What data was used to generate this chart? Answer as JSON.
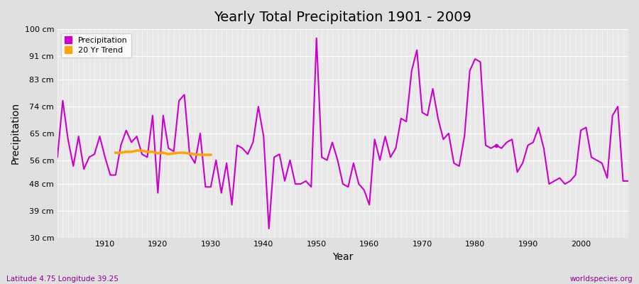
{
  "title": "Yearly Total Precipitation 1901 - 2009",
  "xlabel": "Year",
  "ylabel": "Precipitation",
  "subtitle_left": "Latitude 4.75 Longitude 39.25",
  "subtitle_right": "worldspecies.org",
  "line_color": "#CC00CC",
  "trend_color": "#FFA500",
  "fig_bg_color": "#E0E0E0",
  "plot_bg_color": "#E8E8E8",
  "ylim": [
    30,
    100
  ],
  "yticks": [
    30,
    39,
    48,
    56,
    65,
    74,
    83,
    91,
    100
  ],
  "ytick_labels": [
    "30 cm",
    "39 cm",
    "48 cm",
    "56 cm",
    "65 cm",
    "74 cm",
    "83 cm",
    "91 cm",
    "100 cm"
  ],
  "xticks": [
    1910,
    1920,
    1930,
    1940,
    1950,
    1960,
    1970,
    1980,
    1990,
    2000
  ],
  "years": [
    1901,
    1902,
    1903,
    1904,
    1905,
    1906,
    1907,
    1908,
    1909,
    1910,
    1911,
    1912,
    1913,
    1914,
    1915,
    1916,
    1917,
    1918,
    1919,
    1920,
    1921,
    1922,
    1923,
    1924,
    1925,
    1926,
    1927,
    1928,
    1929,
    1930,
    1931,
    1932,
    1933,
    1934,
    1935,
    1936,
    1937,
    1938,
    1939,
    1940,
    1941,
    1942,
    1943,
    1944,
    1945,
    1946,
    1947,
    1948,
    1949,
    1950,
    1951,
    1952,
    1953,
    1954,
    1955,
    1956,
    1957,
    1958,
    1959,
    1960,
    1961,
    1962,
    1963,
    1964,
    1965,
    1966,
    1967,
    1968,
    1969,
    1970,
    1971,
    1972,
    1973,
    1974,
    1975,
    1976,
    1977,
    1978,
    1979,
    1980,
    1981,
    1982,
    1983,
    1984,
    1985,
    1986,
    1987,
    1988,
    1989,
    1990,
    1991,
    1992,
    1993,
    1994,
    1995,
    1996,
    1997,
    1998,
    1999,
    2000,
    2001,
    2002,
    2003,
    2004,
    2005,
    2006,
    2007,
    2008,
    2009
  ],
  "precip": [
    57,
    76,
    63,
    54,
    64,
    53,
    57,
    58,
    64,
    57,
    51,
    51,
    61,
    66,
    62,
    64,
    58,
    57,
    71,
    45,
    71,
    60,
    59,
    76,
    78,
    58,
    55,
    65,
    47,
    47,
    56,
    45,
    55,
    41,
    61,
    60,
    58,
    62,
    74,
    64,
    33,
    57,
    58,
    49,
    56,
    48,
    48,
    49,
    47,
    97,
    57,
    56,
    62,
    56,
    48,
    47,
    55,
    48,
    46,
    41,
    63,
    56,
    64,
    57,
    60,
    70,
    69,
    86,
    93,
    72,
    71,
    80,
    70,
    63,
    65,
    55,
    54,
    64,
    86,
    90,
    89,
    61,
    60,
    61,
    60,
    62,
    63,
    52,
    55,
    61,
    62,
    67,
    60,
    48,
    49,
    50,
    48,
    49,
    51,
    66,
    67,
    57,
    56,
    55,
    50,
    71,
    74,
    49,
    49
  ],
  "trend_years": [
    1912,
    1913,
    1914,
    1915,
    1916,
    1917,
    1918,
    1919,
    1920,
    1921,
    1922,
    1923,
    1924,
    1925,
    1926,
    1927,
    1928,
    1929,
    1930
  ],
  "trend_values": [
    58.5,
    58.5,
    58.8,
    58.8,
    59.2,
    59.2,
    58.8,
    58.8,
    58.3,
    58.5,
    58.0,
    58.3,
    58.5,
    58.5,
    58.2,
    58.0,
    57.8,
    57.8,
    57.8
  ],
  "dot_year": 1984,
  "dot_value": 61,
  "xlim_left": 1901,
  "xlim_right": 2009
}
